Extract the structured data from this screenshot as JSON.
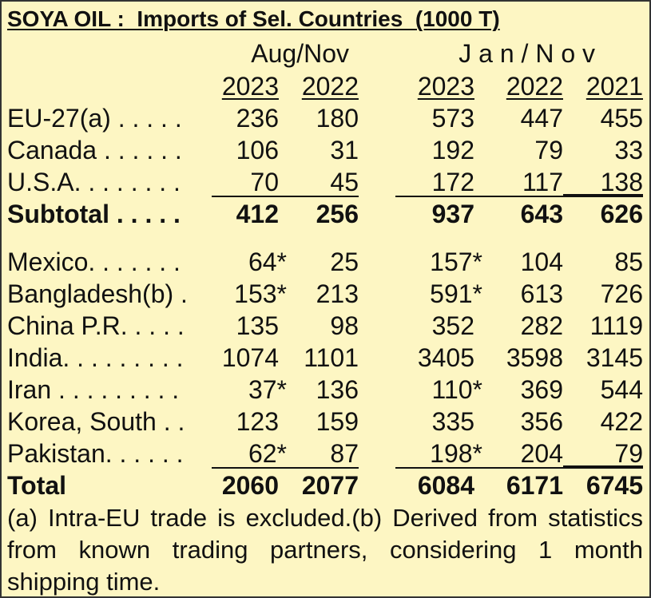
{
  "title": "SOYA OIL :  Imports of Sel. Countries  (1000 T)",
  "column_groups": [
    "Aug/Nov",
    "J a n / N o v"
  ],
  "columns": [
    "2023",
    "2022",
    "2023",
    "2022",
    "2021"
  ],
  "rows": [
    {
      "label": "EU-27(a) . . . . .",
      "values": [
        "236",
        "180",
        "573",
        "447",
        "455"
      ]
    },
    {
      "label": "Canada . . . . . .",
      "values": [
        "106",
        "31",
        "192",
        "79",
        "33"
      ]
    },
    {
      "label": "U.S.A. . . . . . . .",
      "values": [
        "70",
        "45",
        "172",
        "117",
        "138"
      ]
    },
    {
      "label": "Subtotal . . . . .",
      "values": [
        "412",
        "256",
        "937",
        "643",
        "626"
      ]
    },
    {
      "label": "Mexico. . . . . . .",
      "values": [
        "64*",
        "25",
        "157*",
        "104",
        "85"
      ]
    },
    {
      "label": "Bangladesh(b) .",
      "values": [
        "153*",
        "213",
        "591*",
        "613",
        "726"
      ]
    },
    {
      "label": "China P.R. . . . .",
      "values": [
        "135",
        "98",
        "352",
        "282",
        "1119"
      ]
    },
    {
      "label": "India. . . . . . . . .",
      "values": [
        "1074",
        "1101",
        "3405",
        "3598",
        "3145"
      ]
    },
    {
      "label": "Iran . . . . . . . . .",
      "values": [
        "37*",
        "136",
        "110*",
        "369",
        "544"
      ]
    },
    {
      "label": "Korea, South . .",
      "values": [
        "123",
        "159",
        "335",
        "356",
        "422"
      ]
    },
    {
      "label": "Pakistan. . . . . .",
      "values": [
        "62*",
        "87",
        "198*",
        "204",
        "79"
      ]
    },
    {
      "label": "Total",
      "values": [
        "2060",
        "2077",
        "6084",
        "6171",
        "6745"
      ]
    }
  ],
  "footnote": "(a) Intra-EU trade is excluded.(b) Derived from statistics from known trading partners, considering 1 month shipping time."
}
